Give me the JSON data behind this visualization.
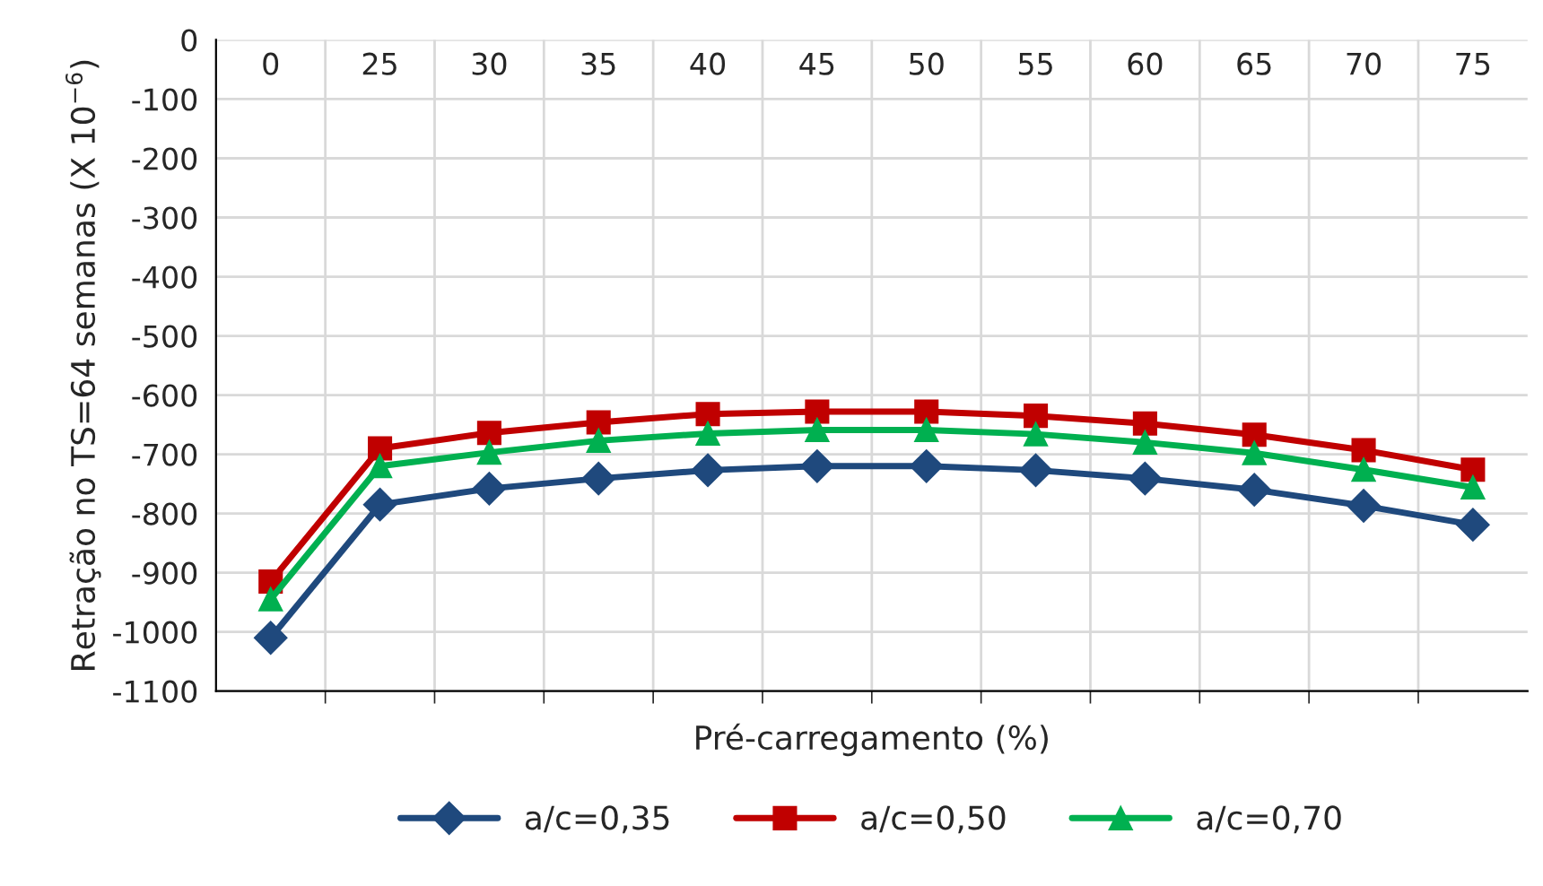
{
  "chart_data": {
    "type": "line",
    "xlabel": "Pré-carregamento (%)",
    "ylabel": "Retração no TS=64 semanas (X 10$^{−6}$)",
    "categories": [
      "0",
      "25",
      "30",
      "35",
      "40",
      "45",
      "50",
      "55",
      "60",
      "65",
      "70",
      "75"
    ],
    "ylim": [
      -1100,
      0
    ],
    "yticks": [
      -1100,
      -1000,
      -900,
      -800,
      -700,
      -600,
      -500,
      -400,
      -300,
      -200,
      -100,
      0
    ],
    "grid": true,
    "legend": "bottom",
    "line_style": "solid",
    "series": [
      {
        "name": "a/c=0,35",
        "color": "#1f497d",
        "marker": "diamond",
        "values": [
          -1010,
          -785,
          -758,
          -741,
          -727,
          -720,
          -720,
          -727,
          -741,
          -760,
          -787,
          -819
        ]
      },
      {
        "name": "a/c=0,50",
        "color": "#c00000",
        "marker": "square",
        "values": [
          -915,
          -690,
          -664,
          -646,
          -632,
          -628,
          -628,
          -635,
          -648,
          -667,
          -693,
          -726
        ]
      },
      {
        "name": "a/c=0,70",
        "color": "#00b050",
        "marker": "triangle",
        "values": [
          -945,
          -720,
          -697,
          -677,
          -665,
          -659,
          -659,
          -666,
          -680,
          -698,
          -726,
          -756
        ]
      }
    ]
  }
}
